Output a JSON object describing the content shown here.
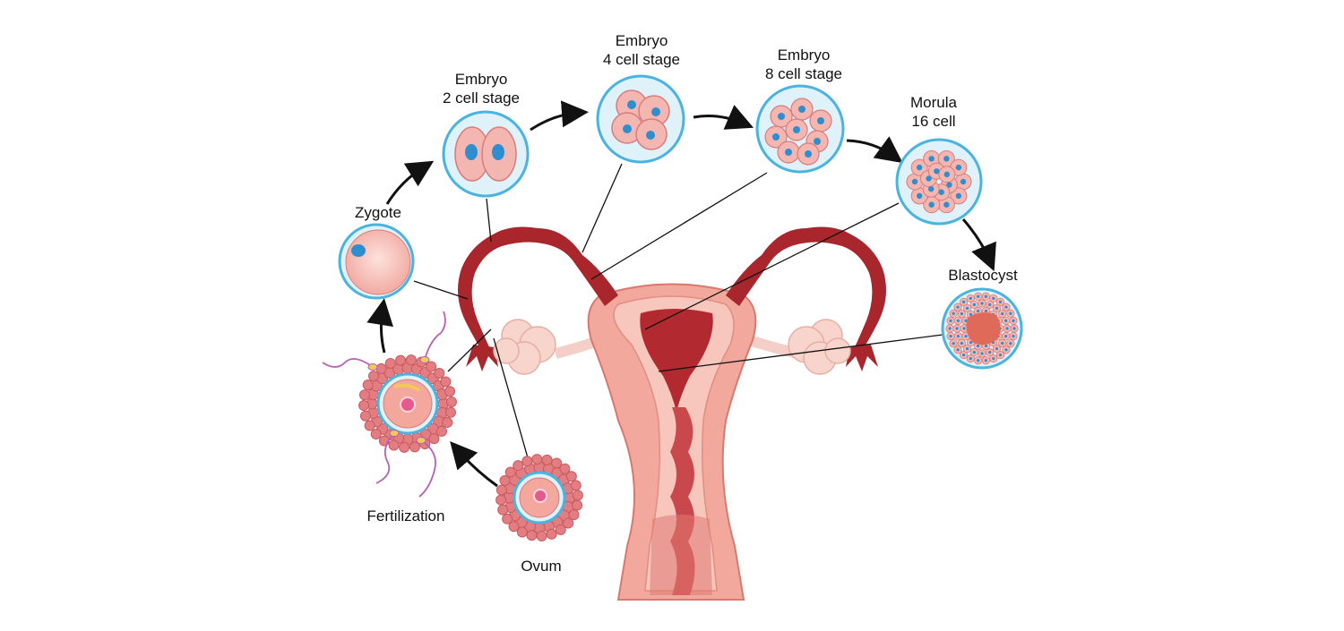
{
  "labels": {
    "zygote": "Zygote",
    "embryo2": [
      "Embryo",
      "2 cell stage"
    ],
    "embryo4": [
      "Embryo",
      "4 cell stage"
    ],
    "embryo8": [
      "Embryo",
      "8 cell stage"
    ],
    "morula": [
      "Morula",
      "16 cell"
    ],
    "blastocyst": "Blastocyst",
    "fertilization": "Fertilization",
    "ovum": "Ovum"
  },
  "colors": {
    "membrane": "#4ab3e0",
    "cell_fill": "#f4b6b0",
    "cell_edge": "#d97c7c",
    "nucleus": "#2d8fcf",
    "uterus_dark": "#a8262c",
    "uterus_mid": "#e5897e",
    "uterus_light": "#f6c6bb",
    "sperm": "#b85fb8",
    "arrow": "#111111"
  }
}
